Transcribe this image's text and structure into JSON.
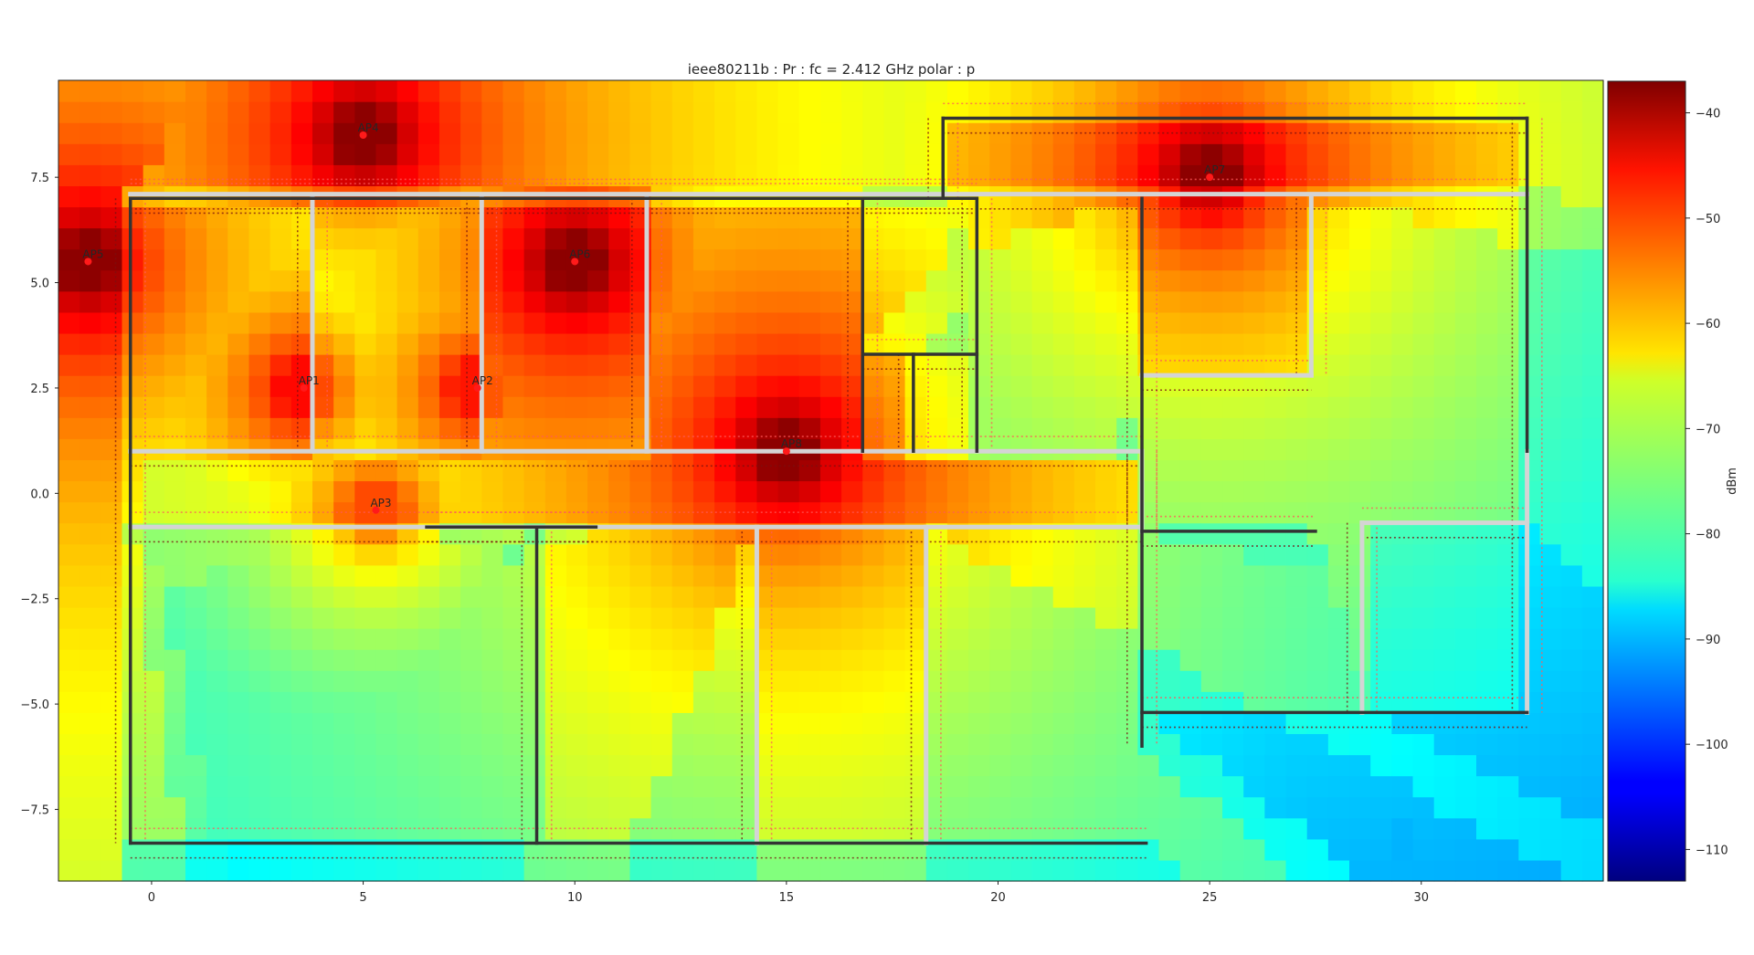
{
  "chart_data": {
    "type": "heatmap",
    "title": "ieee80211b : Pr :  fc = 2.412 GHz polar : p",
    "xlim": [
      -2.2,
      34.3
    ],
    "ylim": [
      -9.2,
      9.8
    ],
    "xticks": [
      0,
      5,
      10,
      15,
      20,
      25,
      30
    ],
    "xtick_labels": [
      "0",
      "5",
      "10",
      "15",
      "20",
      "25",
      "30"
    ],
    "yticks": [
      -7.5,
      -5.0,
      -2.5,
      0.0,
      2.5,
      5.0,
      7.5
    ],
    "ytick_labels": [
      "−7.5",
      "−5.0",
      "−2.5",
      "0.0",
      "2.5",
      "5.0",
      "7.5"
    ],
    "colorbar": {
      "label": "dBm",
      "range": [
        -113,
        -37
      ],
      "colormap": "jet",
      "ticks": [
        -40,
        -50,
        -60,
        -70,
        -80,
        -90,
        -100,
        -110
      ],
      "tick_labels": [
        "−40",
        "−50",
        "−60",
        "−70",
        "−80",
        "−90",
        "−100",
        "−110"
      ]
    },
    "access_points": [
      {
        "name": "AP1",
        "x": 3.6,
        "y": 2.5,
        "power_dbm": -47,
        "label_text": "AP1"
      },
      {
        "name": "AP2",
        "x": 7.7,
        "y": 2.5,
        "power_dbm": -48,
        "label_text": "AP2"
      },
      {
        "name": "AP3",
        "x": 5.3,
        "y": -0.4,
        "power_dbm": -52,
        "label_text": "AP3"
      },
      {
        "name": "AP4",
        "x": 5.0,
        "y": 8.5,
        "power_dbm": -38,
        "label_text": "AP4"
      },
      {
        "name": "AP5",
        "x": -1.5,
        "y": 5.5,
        "power_dbm": -38,
        "label_text": "AP5"
      },
      {
        "name": "AP6",
        "x": 10.0,
        "y": 5.5,
        "power_dbm": -38,
        "label_text": "AP6"
      },
      {
        "name": "AP7",
        "x": 25.0,
        "y": 7.5,
        "power_dbm": -38,
        "label_text": "AP7"
      },
      {
        "name": "AP8",
        "x": 15.0,
        "y": 1.0,
        "power_dbm": -38,
        "label_text": "AP8"
      }
    ],
    "walls_dark": [
      [
        [
          -0.5,
          7.0
        ],
        [
          19.5,
          7.0
        ]
      ],
      [
        [
          -0.5,
          7.0
        ],
        [
          -0.5,
          -8.3
        ]
      ],
      [
        [
          -0.5,
          -8.3
        ],
        [
          23.5,
          -8.3
        ]
      ],
      [
        [
          18.7,
          8.9
        ],
        [
          32.5,
          8.9
        ]
      ],
      [
        [
          18.7,
          8.9
        ],
        [
          18.7,
          7.0
        ]
      ],
      [
        [
          32.5,
          8.9
        ],
        [
          32.5,
          1.0
        ]
      ],
      [
        [
          16.8,
          7.0
        ],
        [
          16.8,
          1.0
        ]
      ],
      [
        [
          19.5,
          7.0
        ],
        [
          19.5,
          1.0
        ]
      ],
      [
        [
          16.8,
          3.3
        ],
        [
          19.5,
          3.3
        ]
      ],
      [
        [
          18.0,
          3.3
        ],
        [
          18.0,
          1.0
        ]
      ],
      [
        [
          23.4,
          7.0
        ],
        [
          23.4,
          -6.0
        ]
      ],
      [
        [
          9.1,
          -0.8
        ],
        [
          9.1,
          -8.3
        ]
      ],
      [
        [
          23.4,
          -5.2
        ],
        [
          32.5,
          -5.2
        ]
      ],
      [
        [
          23.4,
          -0.9
        ],
        [
          27.5,
          -0.9
        ]
      ],
      [
        [
          6.5,
          -0.8
        ],
        [
          10.5,
          -0.8
        ]
      ]
    ],
    "walls_light": [
      [
        [
          -0.5,
          7.1
        ],
        [
          32.5,
          7.1
        ]
      ],
      [
        [
          -0.5,
          1.0
        ],
        [
          23.4,
          1.0
        ]
      ],
      [
        [
          -0.5,
          -0.8
        ],
        [
          23.4,
          -0.8
        ]
      ],
      [
        [
          3.8,
          7.0
        ],
        [
          3.8,
          1.0
        ]
      ],
      [
        [
          7.8,
          7.0
        ],
        [
          7.8,
          1.0
        ]
      ],
      [
        [
          11.7,
          7.0
        ],
        [
          11.7,
          1.0
        ]
      ],
      [
        [
          14.3,
          -0.8
        ],
        [
          14.3,
          -8.3
        ]
      ],
      [
        [
          18.3,
          -0.8
        ],
        [
          18.3,
          -8.3
        ]
      ],
      [
        [
          23.4,
          2.8
        ],
        [
          27.4,
          2.8
        ]
      ],
      [
        [
          27.4,
          7.0
        ],
        [
          27.4,
          2.8
        ]
      ],
      [
        [
          28.6,
          -0.7
        ],
        [
          28.6,
          -5.2
        ]
      ],
      [
        [
          28.6,
          -0.7
        ],
        [
          32.5,
          -0.7
        ]
      ],
      [
        [
          32.5,
          1.0
        ],
        [
          32.5,
          -5.2
        ]
      ],
      [
        [
          23.4,
          1.0
        ],
        [
          23.4,
          -0.9
        ]
      ]
    ]
  }
}
